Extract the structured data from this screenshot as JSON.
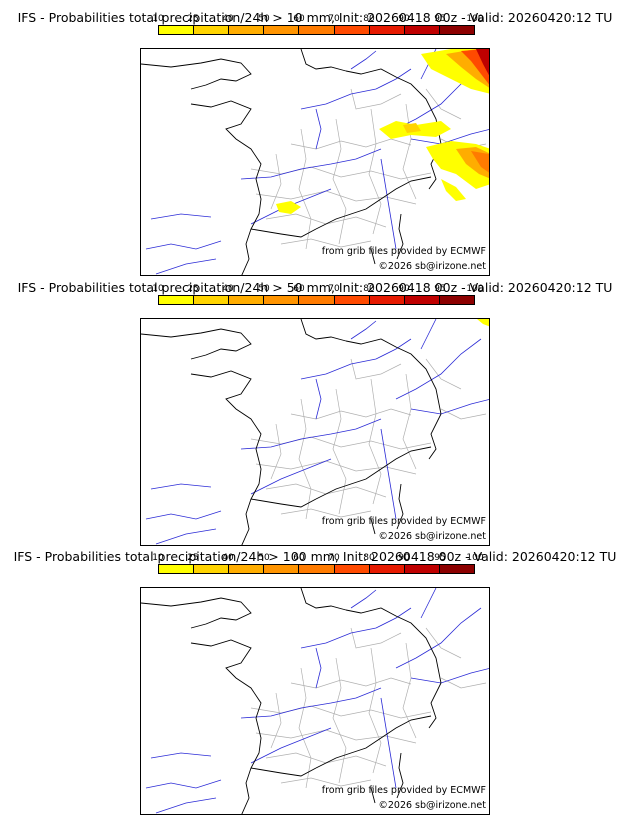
{
  "legend": {
    "ticks": [
      "10",
      "25",
      "40",
      "50",
      "60",
      "70",
      "80",
      "90",
      "95",
      "100"
    ],
    "colors": [
      "#ffff00",
      "#ffd400",
      "#ffad00",
      "#ff9400",
      "#ff7b00",
      "#ff4a00",
      "#e61a00",
      "#bf0000",
      "#8c0000",
      "#5a0000"
    ]
  },
  "map_colors": {
    "coast": "#000000",
    "rivers": "#2b2bd6",
    "borders": "#b0b0b0"
  },
  "credits": {
    "grib": "from grib files provided by ECMWF",
    "copyright": "©2026 sb@irizone.net"
  },
  "panels": [
    {
      "title": "IFS - Probabilities total precipitation/24h > 10 mm, Init: 20260418 00z - Valid: 20260420:12 TU",
      "has_precip": true,
      "precip_level": "high"
    },
    {
      "title": "IFS - Probabilities total precipitation/24h > 50 mm, Init: 20260418 00z - Valid: 20260420:12 TU",
      "has_precip": true,
      "precip_level": "low"
    },
    {
      "title": "IFS - Probabilities total precipitation/24h > 100 mm, Init: 20260418 00z - Valid: 20260420:12 TU",
      "has_precip": false,
      "precip_level": "none"
    }
  ]
}
